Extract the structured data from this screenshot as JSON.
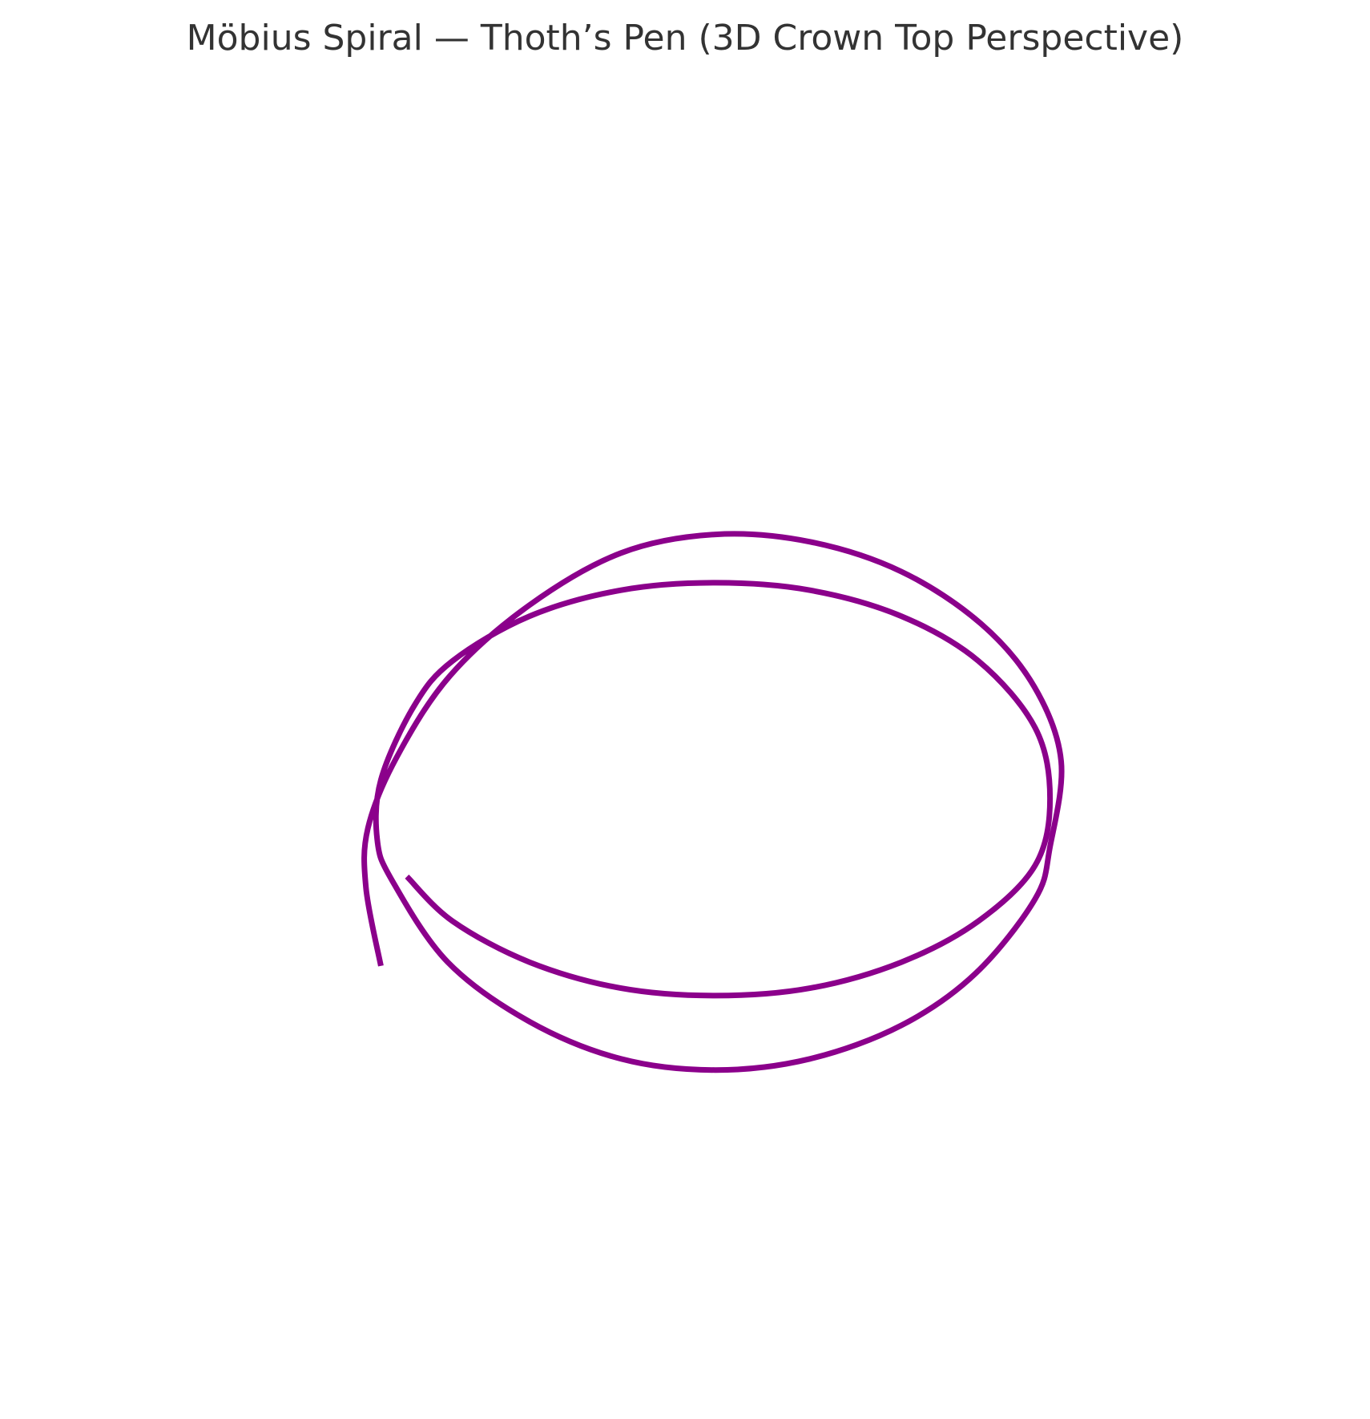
{
  "chart_data": {
    "type": "line",
    "title": "Möbius Spiral — Thoth’s Pen (3D Crown Top Perspective)",
    "xlabel": "",
    "ylabel": "",
    "grid": false,
    "axes_visible": false,
    "color": "#8b008b",
    "series": [
      {
        "x": [
          -0.9,
          -0.94,
          -0.935,
          -0.858,
          -0.714,
          -0.5,
          -0.254,
          0.0,
          0.254,
          0.5,
          0.714,
          0.858,
          0.93,
          0.9,
          0.86,
          0.7,
          0.5,
          0.254,
          0.0,
          -0.254,
          -0.5,
          -0.72,
          -0.87,
          -0.91,
          -0.9,
          -0.81,
          -0.707,
          -0.5,
          -0.254,
          0.0,
          0.254,
          0.5,
          0.707,
          0.86,
          0.9,
          0.86,
          0.707,
          0.5,
          0.254,
          0.0,
          -0.254,
          -0.5,
          -0.707,
          -0.83
        ],
        "y": [
          -0.7,
          -0.49,
          -0.33,
          -0.14,
          0.08,
          0.27,
          0.41,
          0.46,
          0.44,
          0.36,
          0.22,
          0.05,
          -0.15,
          -0.38,
          -0.52,
          -0.72,
          -0.86,
          -0.95,
          -0.98,
          -0.95,
          -0.85,
          -0.69,
          -0.47,
          -0.36,
          -0.2,
          0.0,
          0.12,
          0.24,
          0.31,
          0.33,
          0.31,
          0.24,
          0.12,
          -0.06,
          -0.25,
          -0.43,
          -0.58,
          -0.69,
          -0.76,
          -0.78,
          -0.76,
          -0.69,
          -0.58,
          -0.46
        ]
      }
    ]
  }
}
